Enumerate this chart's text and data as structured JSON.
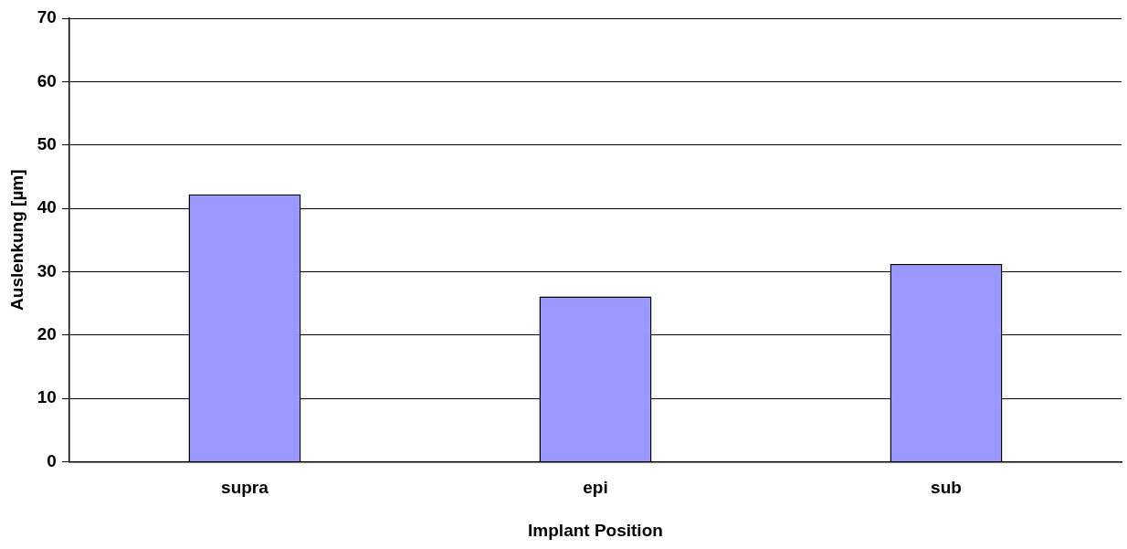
{
  "chart_data": {
    "type": "bar",
    "xlabel": "Implant Position",
    "ylabel": "Auslenkung [µm]",
    "categories": [
      "supra",
      "epi",
      "sub"
    ],
    "series": [
      {
        "color": "#9999ff",
        "values": [
          42.2,
          26.1,
          31.2
        ]
      }
    ],
    "ylim": [
      0,
      70
    ],
    "yticks": [
      0,
      10,
      20,
      30,
      40,
      50,
      60,
      70
    ],
    "grid": "y",
    "legend": false
  }
}
